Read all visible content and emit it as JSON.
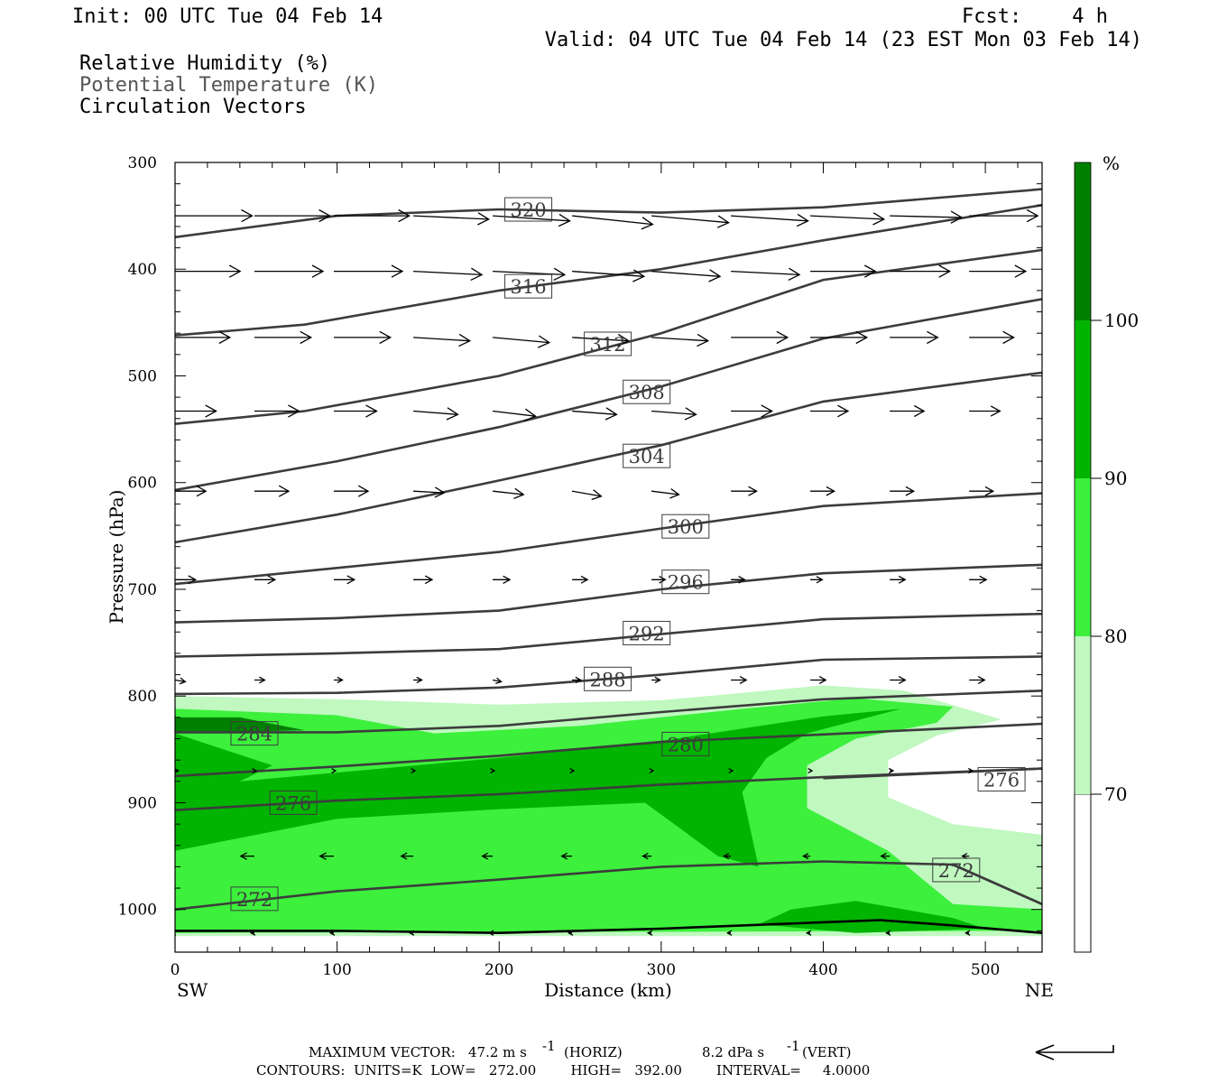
{
  "header": {
    "init": "Init: 00 UTC Tue 04 Feb 14",
    "fcst_label": "Fcst:",
    "fcst_value": "4 h",
    "valid": "Valid: 04 UTC Tue 04 Feb 14 (23 EST Mon 03 Feb 14)"
  },
  "legend": {
    "rh": "Relative Humidity (%)",
    "theta": "Potential Temperature (K)",
    "vectors": "Circulation Vectors"
  },
  "colors": {
    "rh_70_80": "#c0f8c0",
    "rh_80_90": "#3cf03c",
    "rh_90_100": "#00b400",
    "rh_100": "#008000",
    "contour": "#3c3c3c"
  },
  "colorbar": {
    "unit": "%",
    "labels": [
      "100",
      "90",
      "80",
      "70"
    ]
  },
  "footer": {
    "max_vector_label": "MAXIMUM VECTOR:",
    "max_horiz": "47.2 m s",
    "horiz_tag": "(HORIZ)",
    "max_vert": "8.2 dPa s",
    "vert_tag": "(VERT)",
    "exponent": "-1",
    "contours_line": "CONTOURS:  UNITS=K  LOW=   272.00        HIGH=   392.00        INTERVAL=     4.0000"
  },
  "chart_data": {
    "type": "cross-section",
    "xlabel": "Distance (km)",
    "ylabel": "Pressure (hPa)",
    "x_left_label": "SW",
    "x_right_label": "NE",
    "xlim": [
      0,
      535
    ],
    "ylim": [
      1040,
      300
    ],
    "x_ticks": [
      0,
      100,
      200,
      300,
      400,
      500
    ],
    "y_ticks": [
      300,
      400,
      500,
      600,
      700,
      800,
      900,
      1000
    ],
    "x_tick_labels": [
      "0",
      "100",
      "200",
      "300",
      "400",
      "500"
    ],
    "y_tick_labels": [
      "300",
      "400",
      "500",
      "600",
      "700",
      "800",
      "900",
      "1000"
    ],
    "isentropes": [
      {
        "theta": "320",
        "label_at": [
          218,
          344
        ],
        "points": [
          [
            0,
            370
          ],
          [
            100,
            350
          ],
          [
            200,
            344
          ],
          [
            300,
            347
          ],
          [
            400,
            342
          ],
          [
            535,
            325
          ]
        ]
      },
      {
        "theta": "316",
        "label_at": [
          218,
          416
        ],
        "points": [
          [
            0,
            462
          ],
          [
            80,
            452
          ],
          [
            200,
            420
          ],
          [
            300,
            400
          ],
          [
            400,
            373
          ],
          [
            535,
            340
          ]
        ]
      },
      {
        "theta": "312",
        "label_at": [
          267,
          470
        ],
        "points": [
          [
            0,
            545
          ],
          [
            80,
            533
          ],
          [
            200,
            500
          ],
          [
            300,
            460
          ],
          [
            400,
            410
          ],
          [
            535,
            382
          ]
        ]
      },
      {
        "theta": "308",
        "label_at": [
          291,
          515
        ],
        "points": [
          [
            0,
            607
          ],
          [
            100,
            580
          ],
          [
            200,
            548
          ],
          [
            300,
            510
          ],
          [
            400,
            465
          ],
          [
            535,
            428
          ]
        ]
      },
      {
        "theta": "304",
        "label_at": [
          291,
          575
        ],
        "points": [
          [
            0,
            656
          ],
          [
            100,
            630
          ],
          [
            200,
            598
          ],
          [
            300,
            565
          ],
          [
            400,
            524
          ],
          [
            535,
            497
          ]
        ]
      },
      {
        "theta": "300",
        "label_at": [
          315,
          641
        ],
        "points": [
          [
            0,
            695
          ],
          [
            100,
            680
          ],
          [
            200,
            665
          ],
          [
            300,
            643
          ],
          [
            400,
            622
          ],
          [
            535,
            610
          ]
        ]
      },
      {
        "theta": "296",
        "label_at": [
          315,
          693
        ],
        "points": [
          [
            0,
            731
          ],
          [
            100,
            727
          ],
          [
            200,
            720
          ],
          [
            300,
            700
          ],
          [
            400,
            685
          ],
          [
            535,
            677
          ]
        ]
      },
      {
        "theta": "292",
        "label_at": [
          291,
          741
        ],
        "points": [
          [
            0,
            763
          ],
          [
            100,
            760
          ],
          [
            200,
            756
          ],
          [
            300,
            742
          ],
          [
            400,
            728
          ],
          [
            535,
            723
          ]
        ]
      },
      {
        "theta": "288",
        "label_at": [
          267,
          784
        ],
        "points": [
          [
            0,
            798
          ],
          [
            100,
            797
          ],
          [
            200,
            792
          ],
          [
            300,
            780
          ],
          [
            400,
            766
          ],
          [
            535,
            763
          ]
        ]
      },
      {
        "theta": "284",
        "label_at": [
          49,
          835
        ],
        "points": [
          [
            0,
            834
          ],
          [
            100,
            834
          ],
          [
            200,
            828
          ],
          [
            300,
            815
          ],
          [
            400,
            803
          ],
          [
            535,
            795
          ]
        ]
      },
      {
        "theta": "280",
        "label_at": [
          315,
          845
        ],
        "points": [
          [
            0,
            875
          ],
          [
            100,
            866
          ],
          [
            200,
            856
          ],
          [
            300,
            843
          ],
          [
            400,
            836
          ],
          [
            535,
            826
          ]
        ]
      },
      {
        "theta": "276",
        "label_at": [
          73,
          900
        ],
        "points": [
          [
            0,
            907
          ],
          [
            100,
            898
          ],
          [
            200,
            892
          ],
          [
            300,
            883
          ],
          [
            400,
            876
          ],
          [
            535,
            868
          ]
        ]
      },
      {
        "theta": "276",
        "label_at": [
          510,
          878
        ],
        "points": [
          [
            400,
            877
          ],
          [
            535,
            868
          ]
        ]
      },
      {
        "theta": "272",
        "label_at": [
          49,
          990
        ],
        "points": [
          [
            0,
            1000
          ],
          [
            100,
            983
          ],
          [
            200,
            972
          ],
          [
            300,
            960
          ],
          [
            400,
            955
          ],
          [
            480,
            958
          ],
          [
            535,
            995
          ]
        ]
      },
      {
        "theta": "272",
        "label_at": [
          482,
          963
        ],
        "points": [
          [
            480,
            958
          ],
          [
            535,
            995
          ]
        ]
      }
    ],
    "rh_shading": [
      {
        "level": "70-80",
        "polygon": [
          [
            0,
            800
          ],
          [
            100,
            803
          ],
          [
            200,
            808
          ],
          [
            300,
            804
          ],
          [
            350,
            797
          ],
          [
            400,
            790
          ],
          [
            450,
            795
          ],
          [
            510,
            822
          ],
          [
            470,
            837
          ],
          [
            440,
            860
          ],
          [
            440,
            895
          ],
          [
            480,
            920
          ],
          [
            535,
            930
          ],
          [
            535,
            1025
          ],
          [
            0,
            1025
          ]
        ]
      },
      {
        "level": "80-90",
        "polygon": [
          [
            0,
            812
          ],
          [
            100,
            818
          ],
          [
            160,
            835
          ],
          [
            250,
            828
          ],
          [
            350,
            812
          ],
          [
            420,
            802
          ],
          [
            480,
            810
          ],
          [
            470,
            825
          ],
          [
            420,
            840
          ],
          [
            390,
            865
          ],
          [
            390,
            905
          ],
          [
            440,
            945
          ],
          [
            480,
            995
          ],
          [
            535,
            1000
          ],
          [
            535,
            1020
          ],
          [
            0,
            1022
          ]
        ]
      },
      {
        "level": "90-100",
        "polygon": [
          [
            0,
            835
          ],
          [
            60,
            865
          ],
          [
            40,
            880
          ],
          [
            200,
            858
          ],
          [
            300,
            842
          ],
          [
            400,
            819
          ],
          [
            448,
            812
          ],
          [
            390,
            835
          ],
          [
            365,
            858
          ],
          [
            350,
            890
          ],
          [
            360,
            960
          ],
          [
            335,
            950
          ],
          [
            290,
            900
          ],
          [
            200,
            906
          ],
          [
            100,
            915
          ],
          [
            0,
            945
          ]
        ]
      },
      {
        "level": "90-100",
        "polygon": [
          [
            360,
            1014
          ],
          [
            380,
            1000
          ],
          [
            420,
            992
          ],
          [
            480,
            1008
          ],
          [
            500,
            1018
          ],
          [
            420,
            1022
          ]
        ]
      },
      {
        "level": "100+",
        "polygon": [
          [
            0,
            820
          ],
          [
            40,
            820
          ],
          [
            80,
            832
          ],
          [
            0,
            835
          ]
        ]
      }
    ],
    "surface": [
      [
        0,
        1020
      ],
      [
        100,
        1020
      ],
      [
        200,
        1022
      ],
      [
        300,
        1018
      ],
      [
        400,
        1012
      ],
      [
        435,
        1010
      ],
      [
        480,
        1015
      ],
      [
        535,
        1022
      ]
    ],
    "vectors": {
      "x": [
        0,
        49,
        98,
        147,
        196,
        245,
        294,
        343,
        392,
        441,
        490
      ],
      "rows": [
        {
          "p": 350,
          "u": [
            45,
            44,
            44,
            44,
            45,
            47,
            45,
            45,
            43,
            42,
            40
          ],
          "v": [
            0,
            0,
            0,
            2,
            3,
            5,
            4,
            3,
            2,
            1,
            0
          ]
        },
        {
          "p": 402,
          "u": [
            38,
            40,
            40,
            40,
            42,
            42,
            40,
            40,
            38,
            35,
            33
          ],
          "v": [
            0,
            0,
            0,
            2,
            2,
            3,
            3,
            2,
            0,
            0,
            0
          ]
        },
        {
          "p": 464,
          "u": [
            32,
            33,
            33,
            33,
            33,
            33,
            33,
            33,
            33,
            28,
            26
          ],
          "v": [
            0,
            0,
            0,
            2,
            3,
            2,
            2,
            0,
            0,
            0,
            0
          ]
        },
        {
          "p": 533,
          "u": [
            24,
            26,
            25,
            26,
            25,
            26,
            26,
            24,
            22,
            20,
            18
          ],
          "v": [
            0,
            0,
            0,
            2,
            3,
            2,
            2,
            0,
            0,
            0,
            0
          ]
        },
        {
          "p": 608,
          "u": [
            18,
            20,
            20,
            18,
            18,
            17,
            16,
            15,
            14,
            14,
            14
          ],
          "v": [
            0,
            0,
            0,
            1,
            2,
            3,
            2,
            0,
            0,
            0,
            0
          ]
        },
        {
          "p": 691,
          "u": [
            12,
            12,
            12,
            11,
            10,
            9,
            8,
            8,
            7,
            9,
            10
          ],
          "v": [
            0,
            0,
            0,
            0,
            0,
            0,
            0,
            0,
            0,
            0,
            0
          ]
        },
        {
          "p": 785,
          "u": [
            6,
            6,
            5,
            5,
            5,
            5,
            5,
            9,
            9,
            9,
            9
          ],
          "v": [
            1,
            0,
            0,
            0,
            1,
            0,
            0,
            0,
            0,
            0,
            0
          ]
        },
        {
          "p": 870,
          "u": [
            2,
            1,
            1,
            1,
            1,
            1,
            1,
            1,
            1,
            2,
            2
          ],
          "v": [
            0,
            0,
            0,
            0,
            0,
            0,
            0,
            0,
            0,
            0,
            0
          ]
        },
        {
          "p": 950,
          "u": [
            -8,
            -8,
            -8,
            -7,
            -6,
            -6,
            -5,
            -4,
            -4,
            -5,
            -4
          ],
          "v": [
            0,
            0,
            0,
            0,
            0,
            0,
            0,
            0,
            0,
            0,
            0
          ]
        },
        {
          "p": 1022,
          "u": [
            -2,
            -2,
            -2,
            -2,
            -2,
            -2,
            -2,
            -2,
            -2,
            -2,
            -2
          ],
          "v": [
            0,
            0,
            0,
            0,
            0,
            0,
            0,
            0,
            0,
            0,
            0
          ]
        }
      ]
    }
  }
}
